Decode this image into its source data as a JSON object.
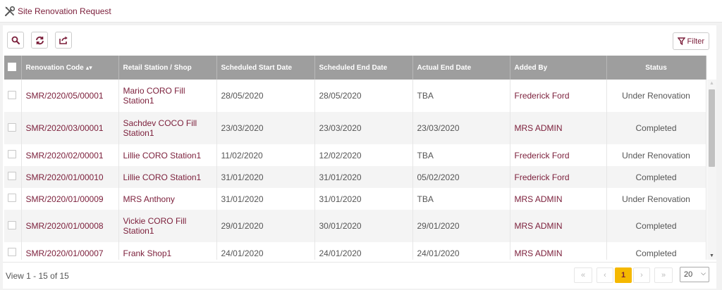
{
  "page": {
    "title": "Site Renovation Request"
  },
  "toolbar": {
    "buttons": [
      {
        "name": "search-button",
        "icon": "search-icon"
      },
      {
        "name": "refresh-button",
        "icon": "refresh-icon"
      },
      {
        "name": "export-button",
        "icon": "export-icon"
      }
    ],
    "filter_label": "Filter"
  },
  "colors": {
    "accent": "#7b1e3a",
    "header_bg": "#9e9e9e",
    "active_page": "#f5b800"
  },
  "table": {
    "columns": [
      "Renovation Code",
      "Retail Station / Shop",
      "Scheduled Start Date",
      "Scheduled End Date",
      "Actual End Date",
      "Added By",
      "Status"
    ],
    "sort_indicator": "▴▾",
    "rows": [
      {
        "code": "SMR/2020/05/00001",
        "station": "Mario CORO Fill Station1",
        "start": "28/05/2020",
        "end": "28/05/2020",
        "actual": "TBA",
        "added_by": "Frederick Ford",
        "status": "Under Renovation"
      },
      {
        "code": "SMR/2020/03/00001",
        "station": "Sachdev COCO Fill Station1",
        "start": "23/03/2020",
        "end": "23/03/2020",
        "actual": "23/03/2020",
        "added_by": "MRS ADMIN",
        "status": "Completed"
      },
      {
        "code": "SMR/2020/02/00001",
        "station": "Lillie CORO Station1",
        "start": "11/02/2020",
        "end": "12/02/2020",
        "actual": "TBA",
        "added_by": "Frederick Ford",
        "status": "Under Renovation"
      },
      {
        "code": "SMR/2020/01/00010",
        "station": "Lillie CORO Station1",
        "start": "31/01/2020",
        "end": "31/01/2020",
        "actual": "05/02/2020",
        "added_by": "Frederick Ford",
        "status": "Completed"
      },
      {
        "code": "SMR/2020/01/00009",
        "station": "MRS Anthony",
        "start": "31/01/2020",
        "end": "31/01/2020",
        "actual": "TBA",
        "added_by": "MRS ADMIN",
        "status": "Under Renovation"
      },
      {
        "code": "SMR/2020/01/00008",
        "station": "Vickie CORO Fill Station1",
        "start": "29/01/2020",
        "end": "30/01/2020",
        "actual": "29/01/2020",
        "added_by": "MRS ADMIN",
        "status": "Completed"
      },
      {
        "code": "SMR/2020/01/00007",
        "station": "Frank Shop1",
        "start": "24/01/2020",
        "end": "24/01/2020",
        "actual": "24/01/2020",
        "added_by": "MRS ADMIN",
        "status": "Completed"
      }
    ]
  },
  "footer": {
    "view_text": "View 1 - 15 of 15",
    "pager": {
      "first": "«",
      "prev": "‹",
      "current": "1",
      "next": "›",
      "last": "»"
    },
    "rows_per_page": "20"
  }
}
